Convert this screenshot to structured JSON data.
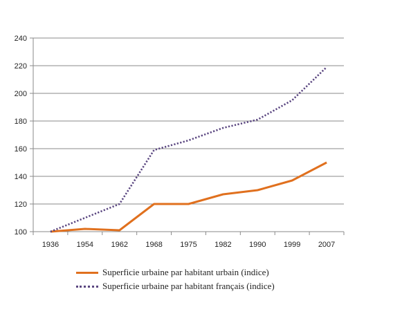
{
  "chart_data": {
    "type": "line",
    "title": "",
    "xlabel": "",
    "ylabel": "",
    "categories": [
      "1936",
      "1954",
      "1962",
      "1968",
      "1975",
      "1982",
      "1990",
      "1999",
      "2007"
    ],
    "ylim": [
      100,
      240
    ],
    "yticks": [
      100,
      120,
      140,
      160,
      180,
      200,
      220,
      240
    ],
    "grid": "horizontal",
    "legend_position": "bottom",
    "series": [
      {
        "name": "Superficie urbaine par habitant urbain (indice)",
        "values": [
          100,
          102,
          101,
          120,
          120,
          127,
          130,
          137,
          150
        ],
        "color": "#e0701e",
        "style": "solid"
      },
      {
        "name": "Superficie urbaine par habitant français (indice)",
        "values": [
          100,
          110,
          120,
          159,
          166,
          175,
          181,
          195,
          219
        ],
        "color": "#5a4680",
        "style": "dotted"
      }
    ]
  }
}
